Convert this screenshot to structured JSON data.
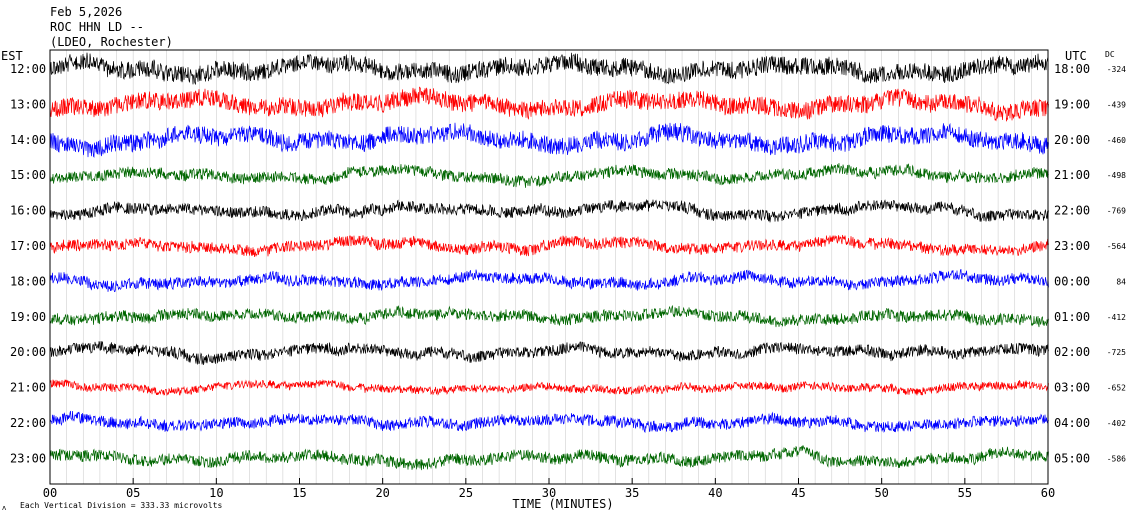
{
  "header": {
    "date": "Feb 5,2026",
    "station": "ROC HHN LD --",
    "network": "(LDEO, Rochester)"
  },
  "labels": {
    "left_tz": "EST",
    "right_tz": "UTC",
    "dc_header": "DC",
    "footer_symbol": "ʌ",
    "footer_note": "Each Vertical Division =  333.33 microvolts"
  },
  "chart_data": {
    "type": "line",
    "title": "",
    "xlabel": "TIME (MINUTES)",
    "xlim": [
      0,
      60
    ],
    "x_ticks": [
      "00",
      "05",
      "10",
      "15",
      "20",
      "25",
      "30",
      "35",
      "40",
      "45",
      "50",
      "55",
      "60"
    ],
    "color_cycle": [
      "#000000",
      "#ff0000",
      "#0000ff",
      "#006600"
    ],
    "grid_vertical_every_minutes": 1,
    "rows": [
      {
        "est": "12:00",
        "utc": "18:00",
        "dc": "-324",
        "amplitude": "high"
      },
      {
        "est": "13:00",
        "utc": "19:00",
        "dc": "-439",
        "amplitude": "high"
      },
      {
        "est": "14:00",
        "utc": "20:00",
        "dc": "-460",
        "amplitude": "high"
      },
      {
        "est": "15:00",
        "utc": "21:00",
        "dc": "-498",
        "amplitude": "medium"
      },
      {
        "est": "16:00",
        "utc": "22:00",
        "dc": "-769",
        "amplitude": "medium"
      },
      {
        "est": "17:00",
        "utc": "23:00",
        "dc": "-564",
        "amplitude": "medium"
      },
      {
        "est": "18:00",
        "utc": "00:00",
        "dc": "84",
        "amplitude": "medium"
      },
      {
        "est": "19:00",
        "utc": "01:00",
        "dc": "-412",
        "amplitude": "medium"
      },
      {
        "est": "20:00",
        "utc": "02:00",
        "dc": "-725",
        "amplitude": "medium"
      },
      {
        "est": "21:00",
        "utc": "03:00",
        "dc": "-652",
        "amplitude": "low"
      },
      {
        "est": "22:00",
        "utc": "04:00",
        "dc": "-402",
        "amplitude": "medium"
      },
      {
        "est": "23:00",
        "utc": "05:00",
        "dc": "-586",
        "amplitude": "medium"
      }
    ]
  }
}
